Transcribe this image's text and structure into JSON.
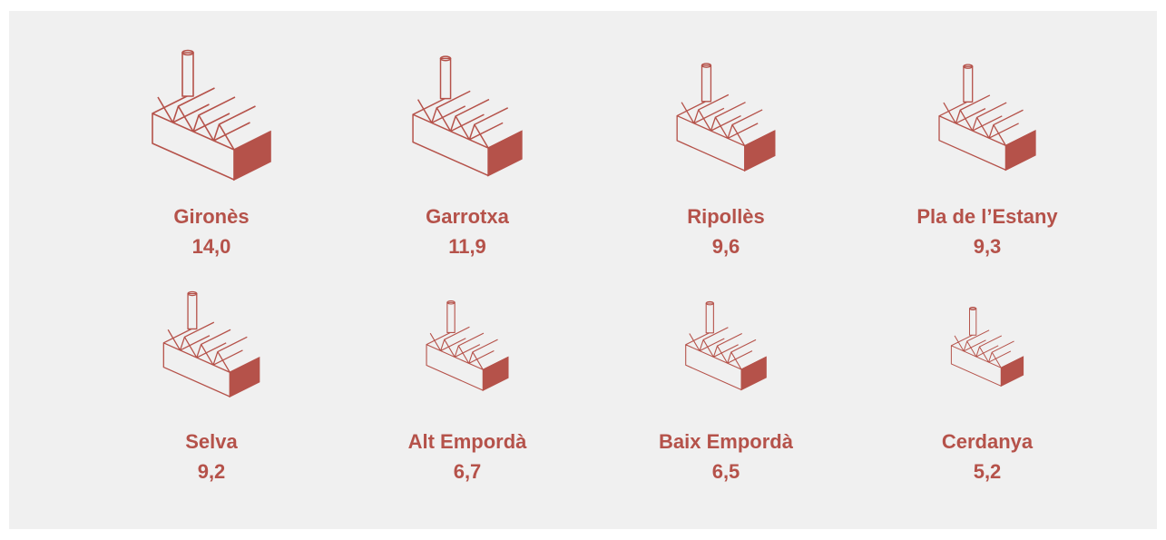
{
  "chart_data": {
    "type": "pictogram",
    "color": "#b5524a",
    "categories": [
      "Gironès",
      "Garrotxa",
      "Ripollès",
      "Pla de l’Estany",
      "Selva",
      "Alt Empordà",
      "Baix Empordà",
      "Cerdanya"
    ],
    "values": [
      14.0,
      11.9,
      9.6,
      9.3,
      9.2,
      6.7,
      6.5,
      5.2
    ],
    "value_labels": [
      "14,0",
      "11,9",
      "9,6",
      "9,3",
      "9,2",
      "6,7",
      "6,5",
      "5,2"
    ]
  }
}
